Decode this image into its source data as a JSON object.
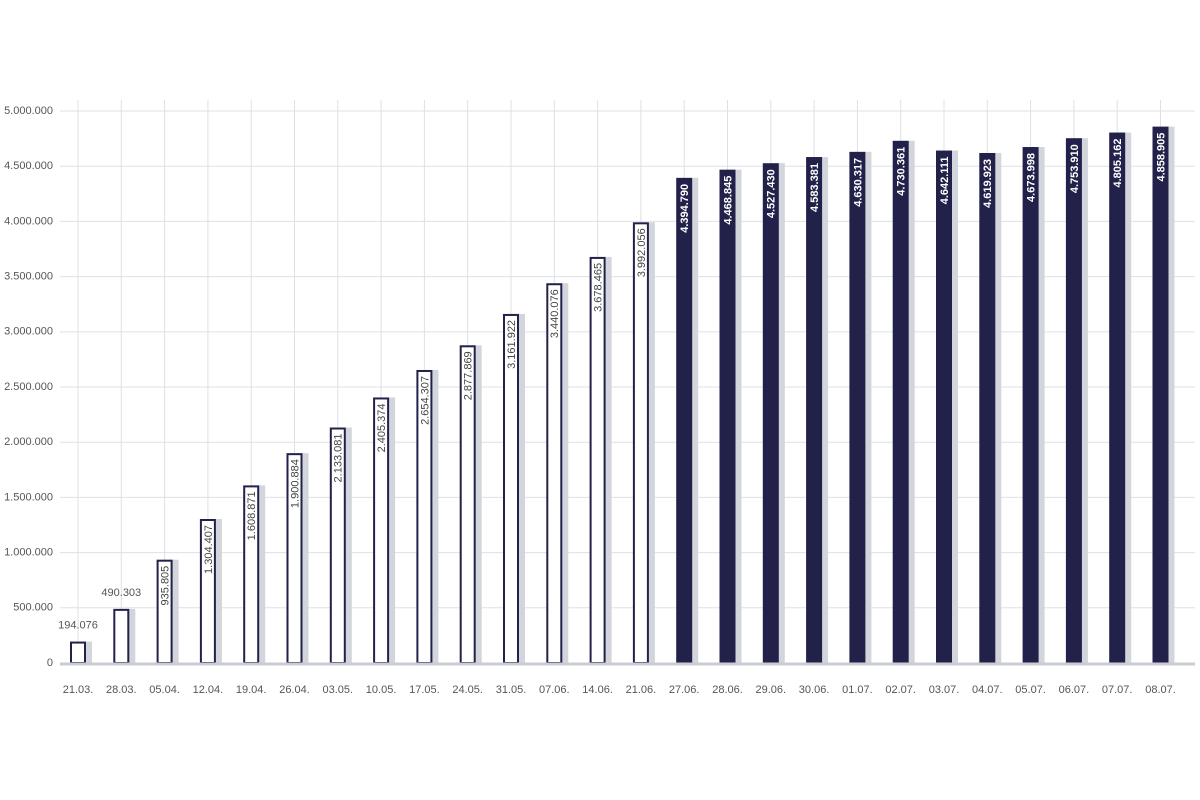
{
  "chart_data": {
    "type": "bar",
    "categories": [
      "21.03.",
      "28.03.",
      "05.04.",
      "12.04.",
      "19.04.",
      "26.04.",
      "03.05.",
      "10.05.",
      "17.05.",
      "24.05.",
      "31.05.",
      "07.06.",
      "14.06.",
      "21.06.",
      "27.06.",
      "28.06.",
      "29.06.",
      "30.06.",
      "01.07.",
      "02.07.",
      "03.07.",
      "04.07.",
      "05.07.",
      "06.07.",
      "07.07.",
      "08.07."
    ],
    "values": [
      194076,
      490303,
      935805,
      1304407,
      1608871,
      1900884,
      2133081,
      2405374,
      2654307,
      2877869,
      3161922,
      3440076,
      3678465,
      3992056,
      4394790,
      4468845,
      4527430,
      4583381,
      4630317,
      4730361,
      4642111,
      4619923,
      4673998,
      4753910,
      4805162,
      4858905
    ],
    "value_labels": [
      "194.076",
      "490.303",
      "935.805",
      "1.304.407",
      "1.608.871",
      "1.900.884",
      "2.133.081",
      "2.405.374",
      "2.654.307",
      "2.877.869",
      "3.161.922",
      "3.440.076",
      "3.678.465",
      "3.992.056",
      "4.394.790",
      "4.468.845",
      "4.527.430",
      "4.583.381",
      "4.630.317",
      "4.730.361",
      "4.642.111",
      "4.619.923",
      "4.673.998",
      "4.753.910",
      "4.805.162",
      "4.858.905"
    ],
    "colors": [
      "#ffffff",
      "#ffffff",
      "#ffffff",
      "#ffffff",
      "#ffffff",
      "#ffffff",
      "#ffffff",
      "#ffffff",
      "#ffffff",
      "#ffffff",
      "#ffffff",
      "#ffffff",
      "#ffffff",
      "#ffffff",
      "#22214a",
      "#22214a",
      "#22214a",
      "#22214a",
      "#22214a",
      "#22214a",
      "#22214a",
      "#22214a",
      "#22214a",
      "#22214a",
      "#22214a",
      "#22214a"
    ],
    "edge_color": "#22214a",
    "shadow_color": "#d2d5db",
    "ylim": [
      0,
      5100000
    ],
    "yticks": [
      0,
      {
        "value": 500000,
        "label": "500.000"
      },
      {
        "value": 1000000,
        "label": "1.000.000"
      },
      {
        "value": 1500000,
        "label": "1.500.000"
      },
      {
        "value": 2000000,
        "label": "2.000.000"
      },
      {
        "value": 2500000,
        "label": "2.500.000"
      },
      {
        "value": 3000000,
        "label": "3.000.000"
      },
      {
        "value": 3500000,
        "label": "3.500.000"
      },
      {
        "value": 4000000,
        "label": "4.000.000"
      },
      {
        "value": 4500000,
        "label": "4.500.000"
      },
      {
        "value": 5000000,
        "label": "5.000.000"
      }
    ],
    "grid": true
  }
}
